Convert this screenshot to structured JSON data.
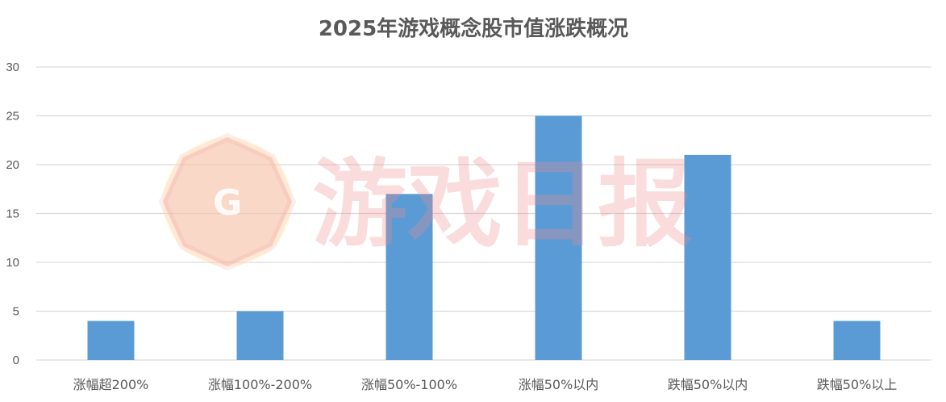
{
  "chart_data": {
    "type": "bar",
    "title": "2025年游戏概念股市值涨跌概况",
    "categories": [
      "涨幅超200%",
      "涨幅100%-200%",
      "涨幅50%-100%",
      "涨幅50%以内",
      "跌幅50%以内",
      "跌幅50%以上"
    ],
    "values": [
      4,
      5,
      17,
      25,
      21,
      4
    ],
    "ylim": [
      0,
      30
    ],
    "yticks": [
      0,
      5,
      10,
      15,
      20,
      25,
      30
    ],
    "xlabel": "",
    "ylabel": "",
    "grid": true,
    "legend": "none",
    "bar_color": "#5b9bd5",
    "gridline_color": "#d9d9d9"
  },
  "watermark": {
    "logo_letter": "G",
    "text": "游戏日报",
    "color": "#f08a8a"
  }
}
